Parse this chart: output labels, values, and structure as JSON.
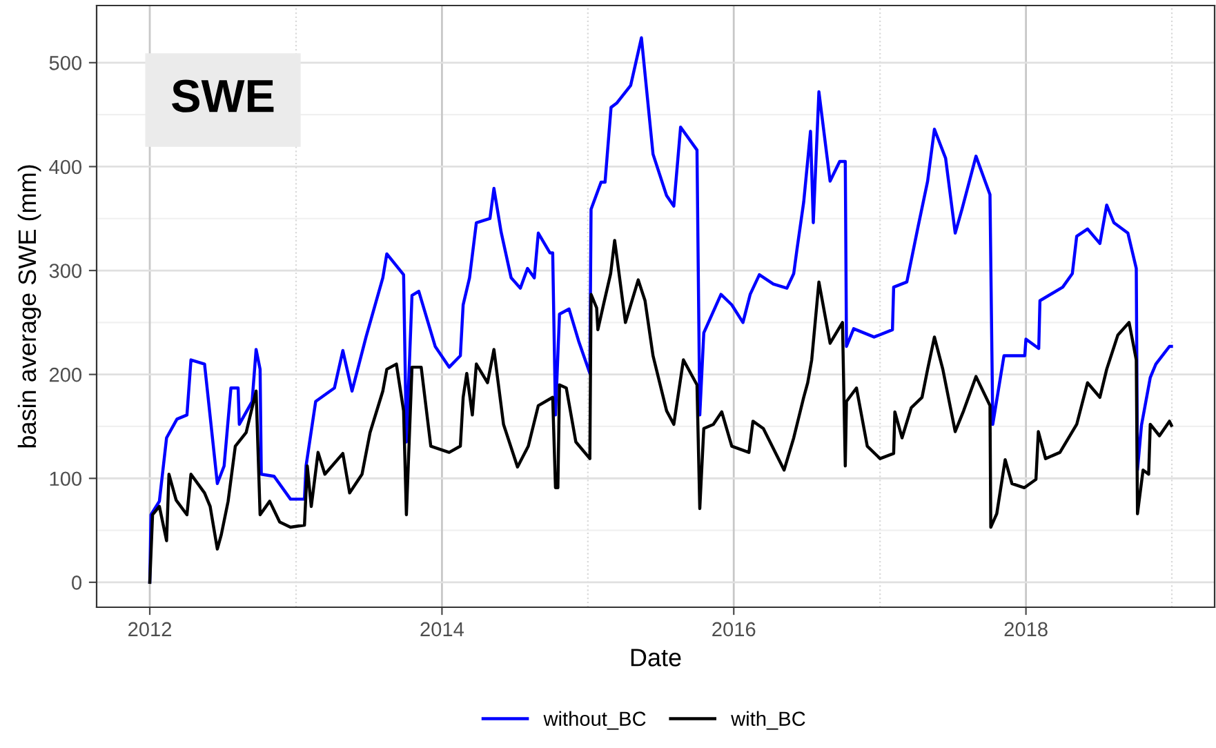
{
  "chart_data": {
    "type": "line",
    "xlabel": "Date",
    "ylabel": "basin average SWE (mm)",
    "annotations": [
      "SWE"
    ],
    "xlim": [
      "2011-08-21",
      "2019-04-18"
    ],
    "ylim": [
      -24,
      555
    ],
    "xticks": [
      {
        "value": "2012-01-01",
        "label": "2012"
      },
      {
        "value": "2014-01-01",
        "label": "2014"
      },
      {
        "value": "2016-01-01",
        "label": "2016"
      },
      {
        "value": "2018-01-01",
        "label": "2018"
      }
    ],
    "yticks": [
      0,
      100,
      200,
      300,
      400,
      500
    ],
    "grid": true,
    "legend": "bottom",
    "line_style": "solid",
    "marker": "none",
    "ref_lines": [
      {
        "axis": "x",
        "value": "2013-01-01",
        "color": "#d9d9d9",
        "line_style": "dotted"
      },
      {
        "axis": "x",
        "value": "2015-01-01",
        "color": "#d9d9d9",
        "line_style": "dotted"
      },
      {
        "axis": "x",
        "value": "2017-01-01",
        "color": "#d9d9d9",
        "line_style": "dotted"
      },
      {
        "axis": "x",
        "value": "2019-01-01",
        "color": "#d9d9d9",
        "line_style": "dotted"
      },
      {
        "axis": "y",
        "value": 50,
        "color": "#f0f0f0",
        "line_style": "solid"
      },
      {
        "axis": "y",
        "value": 150,
        "color": "#f0f0f0",
        "line_style": "solid"
      },
      {
        "axis": "y",
        "value": 250,
        "color": "#f0f0f0",
        "line_style": "solid"
      },
      {
        "axis": "y",
        "value": 350,
        "color": "#f0f0f0",
        "line_style": "solid"
      },
      {
        "axis": "y",
        "value": 450,
        "color": "#f0f0f0",
        "line_style": "solid"
      }
    ],
    "series": [
      {
        "name": "without_BC",
        "color": "#0000ff",
        "x": [
          "2012-01-01",
          "2012-01-04",
          "2012-01-25",
          "2012-02-12",
          "2012-03-09",
          "2012-04-03",
          "2012-04-13",
          "2012-05-17",
          "2012-06-18",
          "2012-07-05",
          "2012-07-22",
          "2012-08-09",
          "2012-08-12",
          "2012-09-13",
          "2012-09-23",
          "2012-10-03",
          "2012-10-06",
          "2012-11-07",
          "2012-12-18",
          "2013-01-22",
          "2013-01-26",
          "2013-02-19",
          "2013-04-07",
          "2013-04-28",
          "2013-05-21",
          "2013-06-25",
          "2013-08-06",
          "2013-08-16",
          "2013-09-27",
          "2013-10-04",
          "2013-10-18",
          "2013-11-04",
          "2013-12-15",
          "2014-01-19",
          "2014-02-16",
          "2014-02-23",
          "2014-03-11",
          "2014-03-28",
          "2014-05-01",
          "2014-05-11",
          "2014-05-29",
          "2014-06-23",
          "2014-07-16",
          "2014-08-03",
          "2014-08-20",
          "2014-08-30",
          "2014-09-28",
          "2014-10-05",
          "2014-10-12",
          "2014-10-22",
          "2014-11-15",
          "2014-12-09",
          "2015-01-06",
          "2015-01-09",
          "2015-02-03",
          "2015-02-13",
          "2015-02-28",
          "2015-03-14",
          "2015-04-18",
          "2015-05-15",
          "2015-06-13",
          "2015-07-17",
          "2015-08-04",
          "2015-08-21",
          "2015-10-01",
          "2015-10-08",
          "2015-10-18",
          "2015-11-30",
          "2015-12-27",
          "2016-01-24",
          "2016-02-11",
          "2016-03-05",
          "2016-04-09",
          "2016-05-13",
          "2016-05-30",
          "2016-06-07",
          "2016-06-24",
          "2016-07-11",
          "2016-07-18",
          "2016-08-01",
          "2016-08-29",
          "2016-09-22",
          "2016-10-06",
          "2016-10-09",
          "2016-10-27",
          "2016-12-17",
          "2017-02-01",
          "2017-02-04",
          "2017-03-09",
          "2017-04-06",
          "2017-04-30",
          "2017-05-17",
          "2017-06-14",
          "2017-07-08",
          "2017-07-25",
          "2017-08-29",
          "2017-10-03",
          "2017-10-10",
          "2017-11-07",
          "2017-12-29",
          "2018-01-01",
          "2018-02-02",
          "2018-02-05",
          "2018-04-03",
          "2018-04-27",
          "2018-05-08",
          "2018-06-04",
          "2018-07-05",
          "2018-07-22",
          "2018-08-09",
          "2018-09-13",
          "2018-10-04",
          "2018-10-07",
          "2018-10-17",
          "2018-11-08",
          "2018-11-22",
          "2018-12-26",
          "2018-12-31"
        ],
        "values": [
          0,
          65,
          78,
          139,
          157,
          161,
          214,
          210,
          95,
          112,
          187,
          187,
          152,
          174,
          224,
          205,
          104,
          102,
          80,
          80,
          112,
          174,
          187,
          223,
          184,
          236,
          293,
          316,
          296,
          135,
          276,
          280,
          227,
          207,
          218,
          267,
          293,
          346,
          350,
          379,
          337,
          293,
          283,
          302,
          293,
          336,
          317,
          317,
          161,
          258,
          263,
          232,
          201,
          359,
          385,
          385,
          457,
          461,
          478,
          524,
          412,
          372,
          362,
          438,
          416,
          161,
          240,
          277,
          267,
          250,
          277,
          296,
          287,
          283,
          297,
          320,
          366,
          434,
          346,
          472,
          386,
          405,
          405,
          227,
          244,
          236,
          243,
          284,
          289,
          342,
          386,
          436,
          408,
          336,
          359,
          410,
          373,
          152,
          218,
          218,
          234,
          225,
          271,
          284,
          297,
          333,
          340,
          326,
          363,
          346,
          336,
          302,
          108,
          151,
          197,
          210,
          227,
          227
        ]
      },
      {
        "name": "with_BC",
        "color": "#000000",
        "x": [
          "2012-01-01",
          "2012-01-08",
          "2012-01-25",
          "2012-02-12",
          "2012-02-18",
          "2012-03-07",
          "2012-04-03",
          "2012-04-13",
          "2012-05-17",
          "2012-05-31",
          "2012-06-18",
          "2012-06-28",
          "2012-07-15",
          "2012-08-02",
          "2012-08-29",
          "2012-09-23",
          "2012-10-03",
          "2012-10-27",
          "2012-11-21",
          "2012-12-18",
          "2013-01-22",
          "2013-01-29",
          "2013-02-08",
          "2013-02-25",
          "2013-03-14",
          "2013-04-28",
          "2013-05-15",
          "2013-06-15",
          "2013-07-05",
          "2013-08-06",
          "2013-08-16",
          "2013-09-09",
          "2013-09-27",
          "2013-10-04",
          "2013-10-18",
          "2013-11-10",
          "2013-12-04",
          "2014-01-19",
          "2014-02-16",
          "2014-02-23",
          "2014-03-04",
          "2014-03-18",
          "2014-03-28",
          "2014-04-25",
          "2014-05-11",
          "2014-06-04",
          "2014-07-09",
          "2014-08-05",
          "2014-08-30",
          "2014-10-05",
          "2014-10-12",
          "2014-10-18",
          "2014-10-22",
          "2014-11-08",
          "2014-12-02",
          "2015-01-06",
          "2015-01-09",
          "2015-01-23",
          "2015-01-26",
          "2015-02-09",
          "2015-02-27",
          "2015-03-09",
          "2015-03-19",
          "2015-04-05",
          "2015-05-07",
          "2015-05-24",
          "2015-06-13",
          "2015-07-17",
          "2015-08-04",
          "2015-08-28",
          "2015-10-01",
          "2015-10-08",
          "2015-10-18",
          "2015-11-11",
          "2015-12-02",
          "2015-12-27",
          "2016-02-08",
          "2016-02-18",
          "2016-03-15",
          "2016-05-06",
          "2016-05-30",
          "2016-06-24",
          "2016-07-04",
          "2016-07-14",
          "2016-08-01",
          "2016-08-29",
          "2016-09-29",
          "2016-10-06",
          "2016-10-09",
          "2016-11-03",
          "2016-11-30",
          "2017-01-01",
          "2017-02-04",
          "2017-02-07",
          "2017-02-25",
          "2017-03-20",
          "2017-04-16",
          "2017-04-30",
          "2017-05-17",
          "2017-06-07",
          "2017-07-08",
          "2017-07-29",
          "2017-08-29",
          "2017-10-03",
          "2017-10-05",
          "2017-10-20",
          "2017-11-10",
          "2017-11-27",
          "2017-12-28",
          "2018-01-26",
          "2018-02-01",
          "2018-02-19",
          "2018-03-27",
          "2018-05-08",
          "2018-06-04",
          "2018-07-05",
          "2018-07-22",
          "2018-08-19",
          "2018-09-16",
          "2018-10-04",
          "2018-10-07",
          "2018-10-21",
          "2018-11-04",
          "2018-11-08",
          "2018-12-01",
          "2018-12-26",
          "2018-12-31"
        ],
        "values": [
          0,
          65,
          73,
          40,
          104,
          79,
          65,
          104,
          86,
          73,
          32,
          46,
          78,
          131,
          144,
          184,
          65,
          78,
          58,
          53,
          55,
          112,
          73,
          125,
          104,
          124,
          86,
          104,
          144,
          184,
          205,
          210,
          165,
          65,
          207,
          207,
          131,
          125,
          131,
          178,
          201,
          161,
          210,
          192,
          224,
          152,
          111,
          131,
          170,
          178,
          91,
          91,
          190,
          187,
          135,
          119,
          277,
          264,
          243,
          267,
          297,
          329,
          300,
          250,
          291,
          271,
          218,
          165,
          152,
          214,
          190,
          71,
          148,
          152,
          164,
          131,
          125,
          155,
          148,
          108,
          139,
          178,
          192,
          214,
          289,
          230,
          250,
          112,
          174,
          187,
          131,
          119,
          124,
          164,
          139,
          168,
          178,
          205,
          236,
          205,
          145,
          165,
          198,
          170,
          53,
          66,
          118,
          95,
          91,
          99,
          145,
          119,
          125,
          152,
          192,
          178,
          205,
          238,
          250,
          214,
          66,
          108,
          104,
          152,
          141,
          155,
          151
        ]
      }
    ]
  }
}
